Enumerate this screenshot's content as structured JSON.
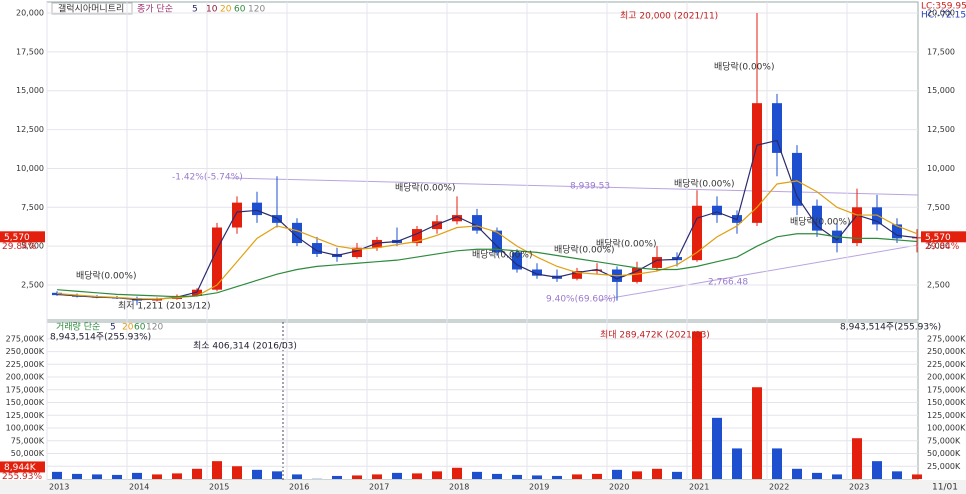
{
  "header": {
    "name": "갤럭시아머니트리",
    "ma_title": "종가 단순",
    "lc": "LC:359.95",
    "hc": "HC:-72.15",
    "date_label": "11/01"
  },
  "chart_data": [
    {
      "type": "candlestick",
      "open": [
        2000,
        1850,
        1750,
        1700,
        1650,
        1500,
        1600,
        1800,
        2200,
        6200,
        7800,
        7000,
        6500,
        5200,
        4500,
        4300,
        4900,
        5400,
        5200,
        6100,
        6600,
        7000,
        6000,
        4600,
        3500,
        3100,
        2900,
        3400,
        3500,
        2700,
        3600,
        4300,
        4100,
        7600,
        7000,
        6500,
        14200,
        11000,
        7600,
        6000,
        5200,
        7500,
        6400,
        5500
      ],
      "high": [
        2100,
        1950,
        1850,
        1800,
        1750,
        1700,
        1900,
        2300,
        6500,
        8200,
        8500,
        9500,
        6800,
        5600,
        4900,
        5200,
        5600,
        6200,
        6300,
        7000,
        8200,
        7400,
        6200,
        4800,
        3900,
        3500,
        3600,
        3900,
        3700,
        4000,
        5000,
        4600,
        8600,
        8200,
        7300,
        20000,
        14800,
        11500,
        8000,
        6500,
        8700,
        8300,
        6800,
        6100
      ],
      "low": [
        1800,
        1700,
        1650,
        1600,
        1211,
        1450,
        1550,
        1750,
        2100,
        5800,
        6500,
        6200,
        5000,
        4300,
        4000,
        4200,
        4700,
        5000,
        5000,
        5800,
        6400,
        5800,
        4400,
        3300,
        2900,
        2700,
        2800,
        3200,
        1500,
        2600,
        3400,
        3700,
        4000,
        6500,
        5800,
        6300,
        9500,
        7000,
        5600,
        4600,
        5000,
        6000,
        5200,
        4600
      ],
      "close": [
        1850,
        1750,
        1700,
        1650,
        1500,
        1600,
        1800,
        2200,
        6200,
        7800,
        7000,
        6500,
        5200,
        4500,
        4300,
        4900,
        5400,
        5200,
        6100,
        6600,
        7000,
        6000,
        4600,
        3500,
        3100,
        2900,
        3400,
        3500,
        2700,
        3600,
        4300,
        4100,
        7600,
        7000,
        6500,
        14200,
        11000,
        7600,
        6000,
        5200,
        7500,
        6400,
        5500,
        5570
      ],
      "up_color": "#e3200d",
      "down_color": "#1d4fcf",
      "ylim": [
        250,
        20580
      ],
      "yticks": [
        {
          "value": 2500,
          "label": "2,500"
        },
        {
          "value": 5000,
          "label": "5,000"
        },
        {
          "value": 7500,
          "label": "7,500"
        },
        {
          "value": 10000,
          "label": "10,000"
        },
        {
          "value": 12500,
          "label": "12,500"
        },
        {
          "value": 15000,
          "label": "15,000"
        },
        {
          "value": 17500,
          "label": "17,500"
        },
        {
          "value": 20000,
          "label": "20,000"
        }
      ],
      "xticks": [
        {
          "value": 0,
          "label": "2013"
        },
        {
          "value": 4,
          "label": "2014"
        },
        {
          "value": 8,
          "label": "2015"
        },
        {
          "value": 12,
          "label": "2016"
        },
        {
          "value": 16,
          "label": "2017"
        },
        {
          "value": 20,
          "label": "2018"
        },
        {
          "value": 24,
          "label": "2019"
        },
        {
          "value": 28,
          "label": "2020"
        },
        {
          "value": 32,
          "label": "2021"
        },
        {
          "value": 36,
          "label": "2022"
        },
        {
          "value": 40,
          "label": "2023"
        }
      ],
      "series": [
        {
          "name": "5",
          "color": "#2a2a6e",
          "values": [
            1900,
            1800,
            1720,
            1680,
            1560,
            1580,
            1720,
            2050,
            4800,
            7200,
            7300,
            6800,
            5600,
            4700,
            4400,
            4700,
            5200,
            5300,
            5800,
            6400,
            6900,
            6300,
            5000,
            3800,
            3200,
            3000,
            3300,
            3500,
            2900,
            3400,
            4100,
            4150,
            6800,
            7200,
            6700,
            11500,
            11800,
            8200,
            6300,
            5400,
            7000,
            6600,
            5700,
            5550
          ]
        },
        {
          "name": "10",
          "color": "#8b1a3a"
        },
        {
          "name": "20",
          "color": "#e0a010",
          "values": [
            1950,
            1850,
            1760,
            1700,
            1620,
            1600,
            1680,
            1800,
            2500,
            4000,
            5500,
            6300,
            6000,
            5500,
            5000,
            4800,
            4900,
            5100,
            5300,
            5700,
            6200,
            6300,
            5900,
            5000,
            4300,
            3700,
            3300,
            3200,
            3100,
            3200,
            3400,
            3800,
            4600,
            5600,
            6300,
            7500,
            9000,
            9200,
            8500,
            7500,
            7000,
            7000,
            6300,
            5800
          ]
        },
        {
          "name": "60",
          "color": "#2e8b3e",
          "values": [
            2200,
            2100,
            2000,
            1900,
            1850,
            1800,
            1750,
            1800,
            2000,
            2400,
            2800,
            3200,
            3500,
            3700,
            3800,
            3900,
            4000,
            4100,
            4300,
            4500,
            4700,
            4800,
            4800,
            4700,
            4600,
            4400,
            4200,
            4000,
            3800,
            3600,
            3500,
            3500,
            3700,
            4000,
            4300,
            5000,
            5600,
            5800,
            5800,
            5600,
            5500,
            5500,
            5400,
            5300
          ]
        },
        {
          "name": "120",
          "color": "#888888"
        }
      ],
      "current": {
        "label": "5,570",
        "pct": "29.84%"
      },
      "annotations": [
        "최고 20,000 (2021/11)",
        "최저 1,211 (2013/12)",
        "배당락(0.00%)",
        "배당락(0.00%)",
        "배당락(0.00%)",
        "배당락(0.00%)",
        "배당락(0.00%)",
        "배당락(0.00%)",
        "배당락(0.00%)",
        "배당락(0.00%)",
        "-1.42%(-5.74%)",
        "8,939.53",
        "9.40%(69.60%)",
        "2,766.48"
      ]
    },
    {
      "type": "bar",
      "title": "거래량 단순",
      "values": [
        14000,
        10000,
        9000,
        8000,
        12000,
        9000,
        11000,
        20000,
        35000,
        25000,
        18000,
        15000,
        9000,
        406,
        6000,
        7000,
        9000,
        12000,
        11000,
        15000,
        22000,
        14000,
        10000,
        8000,
        7000,
        6000,
        9000,
        10000,
        18000,
        15000,
        20000,
        14000,
        289472,
        120000,
        60000,
        180000,
        60000,
        20000,
        12000,
        9000,
        80000,
        35000,
        15000,
        8944
      ],
      "ylim": [
        0,
        308000
      ],
      "yticks": [
        {
          "value": 25000,
          "label": "25,000K"
        },
        {
          "value": 50000,
          "label": "50,000K"
        },
        {
          "value": 75000,
          "label": "75,000K"
        },
        {
          "value": 100000,
          "label": "100,000K"
        },
        {
          "value": 125000,
          "label": "125,000K"
        },
        {
          "value": 150000,
          "label": "150,000K"
        },
        {
          "value": 175000,
          "label": "175,000K"
        },
        {
          "value": 200000,
          "label": "200,000K"
        },
        {
          "value": 225000,
          "label": "225,000K"
        },
        {
          "value": 250000,
          "label": "250,000K"
        },
        {
          "value": 275000,
          "label": "275,000K"
        }
      ],
      "legend": [
        "5",
        "20",
        "60",
        "120"
      ],
      "current": {
        "label": "8,944K",
        "pct": "255.93%"
      },
      "annotations": [
        "최대 289,472K (2021/03)",
        "최소 406,314 (2016/03)",
        "8,943,514주(255.93%)",
        "8,943,514주(255.93%)"
      ]
    }
  ]
}
